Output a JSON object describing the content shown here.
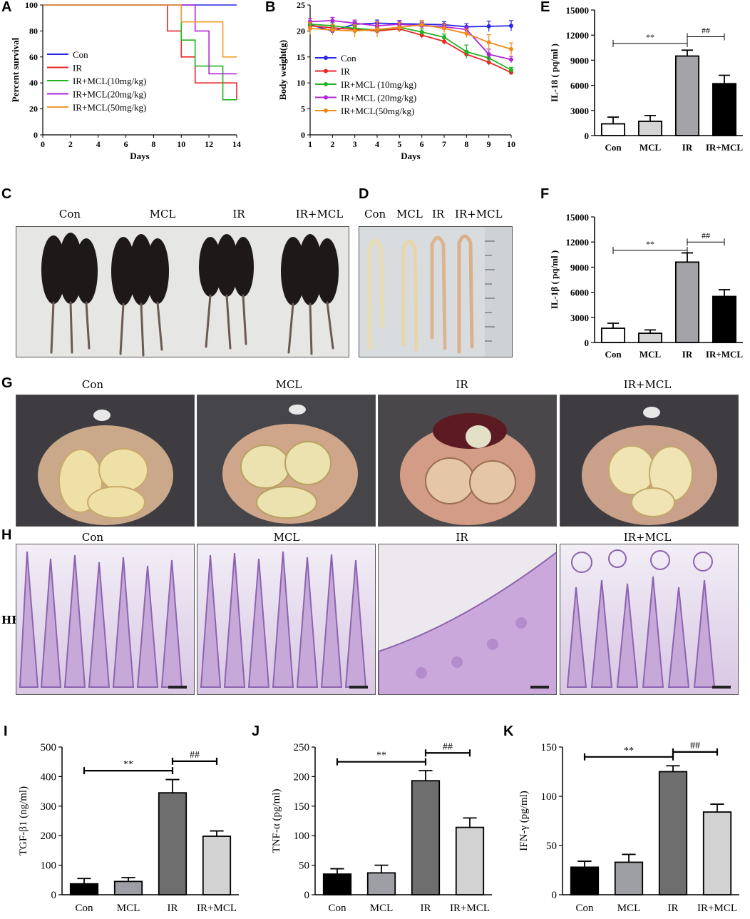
{
  "panels": {
    "A": {
      "label": "A",
      "ylabel": "Percent survival",
      "xlabel": "Days"
    },
    "B": {
      "label": "B",
      "ylabel": "Body weight(g)",
      "xlabel": "Days"
    },
    "C": {
      "label": "C",
      "groups": [
        "Con",
        "MCL",
        "IR",
        "IR+MCL"
      ]
    },
    "D": {
      "label": "D",
      "groups": [
        "Con",
        "MCL",
        "IR",
        "IR+MCL"
      ]
    },
    "E": {
      "label": "E",
      "ylabel": "IL-18 ( pq/ml )"
    },
    "F": {
      "label": "F",
      "ylabel": "IL-1β ( pq/ml )"
    },
    "G": {
      "label": "G",
      "groups": [
        "Con",
        "MCL",
        "IR",
        "IR+MCL"
      ]
    },
    "H": {
      "label": "H",
      "stain": "HE",
      "groups": [
        "Con",
        "MCL",
        "IR",
        "IR+MCL"
      ]
    },
    "I": {
      "label": "I",
      "ylabel": "TGF-β1 (ng/ml)"
    },
    "J": {
      "label": "J",
      "ylabel": "TNF-α (pg/ml)"
    },
    "K": {
      "label": "K",
      "ylabel": "IFN-γ (pg/ml)"
    }
  },
  "chart_data": [
    {
      "id": "A",
      "type": "line",
      "step": true,
      "xlabel": "Days",
      "ylabel": "Percent survival",
      "xlim": [
        0,
        14
      ],
      "ylim": [
        0,
        100
      ],
      "xticks": [
        0,
        2,
        4,
        6,
        8,
        10,
        12,
        14
      ],
      "yticks": [
        0,
        20,
        40,
        60,
        80,
        100
      ],
      "series": [
        {
          "name": "Con",
          "color": "#2626e6",
          "points": [
            [
              0,
              100
            ],
            [
              14,
              100
            ]
          ]
        },
        {
          "name": "IR",
          "color": "#e62626",
          "points": [
            [
              0,
              100
            ],
            [
              9,
              100
            ],
            [
              9,
              80
            ],
            [
              10,
              80
            ],
            [
              10,
              60
            ],
            [
              11,
              60
            ],
            [
              11,
              40
            ],
            [
              14,
              40
            ],
            [
              14,
              27
            ]
          ]
        },
        {
          "name": "IR+MCL(10mg/kg)",
          "color": "#22b422",
          "points": [
            [
              0,
              100
            ],
            [
              10,
              100
            ],
            [
              10,
              73
            ],
            [
              11,
              73
            ],
            [
              11,
              53
            ],
            [
              13,
              53
            ],
            [
              13,
              27
            ],
            [
              14,
              27
            ]
          ]
        },
        {
          "name": "IR+MCL(20mg/kg)",
          "color": "#b126d6",
          "points": [
            [
              0,
              100
            ],
            [
              11,
              100
            ],
            [
              11,
              80
            ],
            [
              12,
              80
            ],
            [
              12,
              47
            ],
            [
              14,
              47
            ]
          ]
        },
        {
          "name": "IR+MCL(50mg/kg)",
          "color": "#f29a2e",
          "points": [
            [
              0,
              100
            ],
            [
              10,
              100
            ],
            [
              10,
              87
            ],
            [
              13,
              87
            ],
            [
              13,
              60
            ],
            [
              14,
              60
            ]
          ]
        }
      ]
    },
    {
      "id": "B",
      "type": "line",
      "xlabel": "Days",
      "ylabel": "Body weight(g)",
      "xlim": [
        1,
        10
      ],
      "ylim": [
        0,
        25
      ],
      "xticks": [
        1,
        2,
        3,
        4,
        5,
        6,
        7,
        8,
        9,
        10
      ],
      "yticks": [
        0,
        5,
        10,
        15,
        20,
        25
      ],
      "series": [
        {
          "name": "Con",
          "color": "#2626e6",
          "values": [
            21.2,
            20.0,
            21.3,
            21.5,
            21.4,
            21.3,
            21.2,
            20.8,
            20.9,
            21.0
          ],
          "err": [
            0.5,
            0.5,
            0.5,
            0.6,
            0.6,
            0.6,
            0.6,
            0.6,
            1.0,
            1.0
          ]
        },
        {
          "name": "IR",
          "color": "#e62626",
          "values": [
            21.0,
            20.6,
            20.3,
            20.0,
            20.4,
            19.2,
            18.0,
            15.5,
            14.0,
            12.0
          ],
          "err": [
            0.6,
            0.6,
            0.6,
            0.6,
            0.6,
            0.6,
            0.6,
            0.6,
            0.6,
            0.4
          ]
        },
        {
          "name": "IR+MCL (10mg/kg)",
          "color": "#22b422",
          "values": [
            21.3,
            21.0,
            20.5,
            20.2,
            20.7,
            19.8,
            18.8,
            16.0,
            14.8,
            12.5
          ],
          "err": [
            0.6,
            0.6,
            0.6,
            0.6,
            0.6,
            0.6,
            0.6,
            1.3,
            0.8,
            0.5
          ]
        },
        {
          "name": "IR+MCL (20mg/kg)",
          "color": "#b126d6",
          "values": [
            21.8,
            22.0,
            21.5,
            21.0,
            21.3,
            21.0,
            20.8,
            20.3,
            15.5,
            14.5
          ],
          "err": [
            0.6,
            0.6,
            0.6,
            0.6,
            0.6,
            0.6,
            0.6,
            0.6,
            1.0,
            0.6
          ]
        },
        {
          "name": "IR+MCL(50mg/kg)",
          "color": "#f28a1a",
          "values": [
            20.5,
            20.2,
            20.0,
            20.3,
            20.7,
            21.2,
            20.5,
            19.5,
            17.8,
            16.5
          ],
          "err": [
            1.2,
            1.0,
            1.2,
            1.5,
            0.9,
            0.8,
            0.8,
            0.8,
            1.5,
            1.2
          ]
        }
      ]
    },
    {
      "id": "E",
      "type": "bar",
      "ylabel": "IL-18 ( pq/ml )",
      "categories": [
        "Con",
        "MCL",
        "IR",
        "IR+MCL"
      ],
      "values": [
        1400,
        1700,
        9500,
        6200
      ],
      "err": [
        800,
        700,
        700,
        1000
      ],
      "colors": [
        "#ffffff",
        "#d4d4d4",
        "#a3a3a8",
        "#000000"
      ],
      "ylim": [
        0,
        15000
      ],
      "yticks": [
        0,
        3000,
        6000,
        9000,
        12000,
        15000
      ],
      "sig": [
        {
          "from": 0,
          "to": 2,
          "text": "**",
          "y": 11000
        },
        {
          "from": 2,
          "to": 3,
          "text": "##",
          "y": 11800
        }
      ]
    },
    {
      "id": "F",
      "type": "bar",
      "ylabel": "IL-1β ( pq/ml )",
      "categories": [
        "Con",
        "MCL",
        "IR",
        "IR+MCL"
      ],
      "values": [
        1700,
        1100,
        9600,
        5500
      ],
      "err": [
        600,
        400,
        1100,
        800
      ],
      "colors": [
        "#ffffff",
        "#d4d4d4",
        "#a3a3a8",
        "#000000"
      ],
      "ylim": [
        0,
        15000
      ],
      "yticks": [
        0,
        3000,
        6000,
        9000,
        12000,
        15000
      ],
      "sig": [
        {
          "from": 0,
          "to": 2,
          "text": "**",
          "y": 11000
        },
        {
          "from": 2,
          "to": 3,
          "text": "##",
          "y": 12000
        }
      ]
    },
    {
      "id": "I",
      "type": "bar",
      "ylabel": "TGF-β1 (ng/ml)",
      "categories": [
        "Con",
        "MCL",
        "IR",
        "IR+MCL"
      ],
      "values": [
        37,
        45,
        345,
        198
      ],
      "err": [
        18,
        13,
        45,
        18
      ],
      "colors": [
        "#000000",
        "#9e9ea5",
        "#6e6e6e",
        "#d2d2d2"
      ],
      "ylim": [
        0,
        500
      ],
      "yticks": [
        0,
        100,
        200,
        300,
        400,
        500
      ],
      "sig": [
        {
          "from": 0,
          "to": 2,
          "text": "**",
          "y": 420
        },
        {
          "from": 2,
          "to": 3,
          "text": "##",
          "y": 452
        }
      ]
    },
    {
      "id": "J",
      "type": "bar",
      "ylabel": "TNF-α (pg/ml)",
      "categories": [
        "Con",
        "MCL",
        "IR",
        "IR+MCL"
      ],
      "values": [
        35,
        37,
        193,
        114
      ],
      "err": [
        9,
        13,
        17,
        16
      ],
      "colors": [
        "#000000",
        "#9e9ea5",
        "#6e6e6e",
        "#d2d2d2"
      ],
      "ylim": [
        0,
        250
      ],
      "yticks": [
        0,
        50,
        100,
        150,
        200,
        250
      ],
      "sig": [
        {
          "from": 0,
          "to": 2,
          "text": "**",
          "y": 225
        },
        {
          "from": 2,
          "to": 3,
          "text": "##",
          "y": 240
        }
      ]
    },
    {
      "id": "K",
      "type": "bar",
      "ylabel": "IFN-γ (pg/ml)",
      "categories": [
        "Con",
        "MCL",
        "IR",
        "IR+MCL"
      ],
      "values": [
        28,
        33,
        125,
        84
      ],
      "err": [
        6,
        8,
        6,
        8
      ],
      "colors": [
        "#000000",
        "#9e9ea5",
        "#6e6e6e",
        "#d2d2d2"
      ],
      "ylim": [
        0,
        150
      ],
      "yticks": [
        0,
        50,
        100,
        150
      ],
      "sig": [
        {
          "from": 0,
          "to": 2,
          "text": "**",
          "y": 140
        },
        {
          "from": 2,
          "to": 3,
          "text": "##",
          "y": 145
        }
      ]
    }
  ]
}
